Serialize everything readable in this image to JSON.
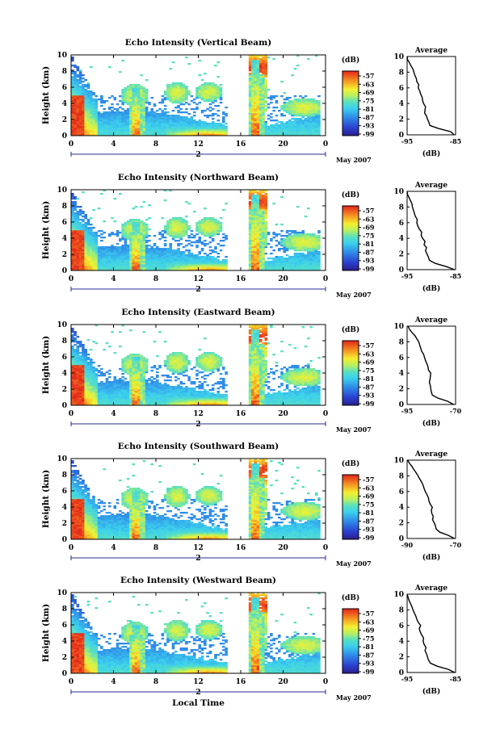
{
  "chart_data": [
    {
      "type": "heatmap",
      "title": "Echo Intensity (Vertical Beam)",
      "ylabel": "Height (km)",
      "ylim": [
        0,
        10
      ],
      "y_ticks": [
        "0",
        "2",
        "4",
        "6",
        "8",
        "10"
      ],
      "xlim": [
        0,
        24
      ],
      "x_ticks": [
        "0",
        "4",
        "8",
        "12",
        "16",
        "20",
        "0"
      ],
      "date_day": "2",
      "date_label": "May 2007",
      "colorbar": {
        "label": "(dB)",
        "ticks": [
          "-57",
          "-63",
          "-69",
          "-75",
          "-81",
          "-87",
          "-93",
          "-99"
        ]
      },
      "average_profile": {
        "title": "Average",
        "xlabel": "(dB)",
        "xlim": [
          -95,
          -85
        ],
        "x_ticks": [
          "-95",
          "-85"
        ],
        "ylim": [
          0,
          10
        ],
        "y_ticks": [
          "0",
          "2",
          "4",
          "6",
          "8",
          "10"
        ],
        "height_km": [
          0.0,
          0.4,
          0.8,
          1.2,
          1.6,
          2.0,
          2.4,
          2.8,
          3.2,
          3.6,
          4.0,
          4.4,
          4.8,
          5.2,
          5.6,
          6.0,
          6.4,
          6.8,
          7.2,
          7.6,
          8.0,
          8.4,
          8.8,
          9.2,
          9.6,
          10.0
        ],
        "values_db": [
          -85.3,
          -86.0,
          -88.5,
          -90.3,
          -90.5,
          -90.8,
          -91.0,
          -91.4,
          -91.3,
          -91.2,
          -91.6,
          -91.8,
          -91.9,
          -92.2,
          -92.4,
          -92.7,
          -92.6,
          -93.0,
          -93.1,
          -93.4,
          -93.6,
          -93.8,
          -94.2,
          -94.5,
          -94.9,
          -95.0
        ]
      }
    },
    {
      "type": "heatmap",
      "title": "Echo Intensity (Northward Beam)",
      "ylabel": "Height (km)",
      "ylim": [
        0,
        10
      ],
      "y_ticks": [
        "0",
        "2",
        "4",
        "6",
        "8",
        "10"
      ],
      "xlim": [
        0,
        24
      ],
      "x_ticks": [
        "0",
        "4",
        "8",
        "12",
        "16",
        "20",
        "0"
      ],
      "date_day": "2",
      "date_label": "May 2007",
      "colorbar": {
        "label": "(dB)",
        "ticks": [
          "-57",
          "-63",
          "-69",
          "-75",
          "-81",
          "-87",
          "-93",
          "-99"
        ]
      },
      "average_profile": {
        "title": "Average",
        "xlabel": "(dB)",
        "xlim": [
          -95,
          -85
        ],
        "x_ticks": [
          "-95",
          "-85"
        ],
        "ylim": [
          0,
          10
        ],
        "y_ticks": [
          "0",
          "2",
          "4",
          "6",
          "8",
          "10"
        ],
        "height_km": [
          0.0,
          0.4,
          0.8,
          1.2,
          1.6,
          2.0,
          2.4,
          2.8,
          3.2,
          3.6,
          4.0,
          4.4,
          4.8,
          5.2,
          5.6,
          6.0,
          6.4,
          6.8,
          7.2,
          7.6,
          8.0,
          8.4,
          8.8,
          9.2,
          9.6,
          10.0
        ],
        "values_db": [
          -85.2,
          -87.0,
          -89.2,
          -90.4,
          -90.6,
          -90.9,
          -91.2,
          -91.0,
          -91.5,
          -91.3,
          -91.8,
          -92.1,
          -92.0,
          -92.5,
          -92.8,
          -93.0,
          -92.9,
          -93.3,
          -93.5,
          -93.7,
          -93.9,
          -94.0,
          -94.3,
          -94.6,
          -94.9,
          -95.0
        ]
      }
    },
    {
      "type": "heatmap",
      "title": "Echo Intensity (Eastward Beam)",
      "ylabel": "Height (km)",
      "ylim": [
        0,
        10
      ],
      "y_ticks": [
        "0",
        "2",
        "4",
        "6",
        "8",
        "10"
      ],
      "xlim": [
        0,
        24
      ],
      "x_ticks": [
        "0",
        "4",
        "8",
        "12",
        "16",
        "20",
        "0"
      ],
      "date_day": "2",
      "date_label": "May 2007",
      "colorbar": {
        "label": "(dB)",
        "ticks": [
          "-57",
          "-63",
          "-69",
          "-75",
          "-81",
          "-87",
          "-93",
          "-99"
        ]
      },
      "average_profile": {
        "title": "Average",
        "xlabel": "(dB)",
        "xlim": [
          -95,
          -70
        ],
        "x_ticks": [
          "-95",
          "-70"
        ],
        "ylim": [
          0,
          10
        ],
        "y_ticks": [
          "0",
          "2",
          "4",
          "6",
          "8",
          "10"
        ],
        "height_km": [
          0.0,
          0.4,
          0.8,
          1.2,
          1.6,
          2.0,
          2.4,
          2.8,
          3.2,
          3.6,
          4.0,
          4.4,
          4.8,
          5.2,
          5.6,
          6.0,
          6.4,
          6.8,
          7.2,
          7.6,
          8.0,
          8.4,
          8.8,
          9.2,
          9.6,
          10.0
        ],
        "values_db": [
          -71.0,
          -74.0,
          -79.0,
          -82.0,
          -82.5,
          -82.8,
          -83.0,
          -83.5,
          -83.2,
          -83.0,
          -82.8,
          -84.0,
          -84.2,
          -84.8,
          -85.5,
          -86.0,
          -86.5,
          -87.5,
          -88.0,
          -88.5,
          -89.0,
          -90.0,
          -91.0,
          -92.5,
          -93.8,
          -94.5
        ]
      }
    },
    {
      "type": "heatmap",
      "title": "Echo Intensity (Southward Beam)",
      "ylabel": "Height (km)",
      "ylim": [
        0,
        10
      ],
      "y_ticks": [
        "0",
        "2",
        "4",
        "6",
        "8",
        "10"
      ],
      "xlim": [
        0,
        24
      ],
      "x_ticks": [
        "0",
        "4",
        "8",
        "12",
        "16",
        "20",
        "0"
      ],
      "date_day": "2",
      "date_label": "May 2007",
      "colorbar": {
        "label": "(dB)",
        "ticks": [
          "-57",
          "-63",
          "-69",
          "-75",
          "-81",
          "-87",
          "-93",
          "-99"
        ]
      },
      "average_profile": {
        "title": "Average",
        "xlabel": "(dB)",
        "xlim": [
          -90,
          -70
        ],
        "x_ticks": [
          "-90",
          "-70"
        ],
        "ylim": [
          0,
          10
        ],
        "y_ticks": [
          "0",
          "2",
          "4",
          "6",
          "8",
          "10"
        ],
        "height_km": [
          0.0,
          0.4,
          0.8,
          1.2,
          1.6,
          2.0,
          2.4,
          2.8,
          3.2,
          3.6,
          4.0,
          4.4,
          4.8,
          5.2,
          5.6,
          6.0,
          6.4,
          6.8,
          7.2,
          7.6,
          8.0,
          8.4,
          8.8,
          9.2,
          9.6,
          10.0
        ],
        "values_db": [
          -70.5,
          -73.0,
          -76.5,
          -78.0,
          -78.3,
          -78.8,
          -79.5,
          -79.2,
          -79.8,
          -80.0,
          -79.6,
          -80.5,
          -81.0,
          -81.2,
          -81.8,
          -82.5,
          -83.0,
          -83.4,
          -84.0,
          -84.8,
          -85.5,
          -86.3,
          -87.2,
          -88.0,
          -89.0,
          -89.8
        ]
      }
    },
    {
      "type": "heatmap",
      "title": "Echo Intensity (Westward Beam)",
      "ylabel": "Height (km)",
      "ylim": [
        0,
        10
      ],
      "y_ticks": [
        "0",
        "2",
        "4",
        "6",
        "8",
        "10"
      ],
      "xlim": [
        0,
        24
      ],
      "x_ticks": [
        "0",
        "4",
        "8",
        "12",
        "16",
        "20",
        "0"
      ],
      "date_day": "2",
      "date_label": "May 2007",
      "xlabel": "Local Time",
      "colorbar": {
        "label": "(dB)",
        "ticks": [
          "-57",
          "-63",
          "-69",
          "-75",
          "-81",
          "-87",
          "-93",
          "-99"
        ]
      },
      "average_profile": {
        "title": "Average",
        "xlabel": "(dB)",
        "xlim": [
          -95,
          -85
        ],
        "x_ticks": [
          "-95",
          "-85"
        ],
        "ylim": [
          0,
          10
        ],
        "y_ticks": [
          "0",
          "2",
          "4",
          "6",
          "8",
          "10"
        ],
        "height_km": [
          0.0,
          0.4,
          0.8,
          1.2,
          1.6,
          2.0,
          2.4,
          2.8,
          3.2,
          3.6,
          4.0,
          4.4,
          4.8,
          5.2,
          5.6,
          6.0,
          6.4,
          6.8,
          7.2,
          7.6,
          8.0,
          8.4,
          8.8,
          9.2,
          9.6,
          10.0
        ],
        "values_db": [
          -85.2,
          -86.5,
          -88.8,
          -90.2,
          -90.6,
          -90.8,
          -91.0,
          -91.3,
          -91.1,
          -91.5,
          -91.7,
          -91.6,
          -92.0,
          -92.3,
          -92.5,
          -92.2,
          -92.7,
          -93.0,
          -93.2,
          -93.5,
          -93.8,
          -94.0,
          -94.3,
          -94.6,
          -94.8,
          -95.0
        ]
      }
    }
  ]
}
